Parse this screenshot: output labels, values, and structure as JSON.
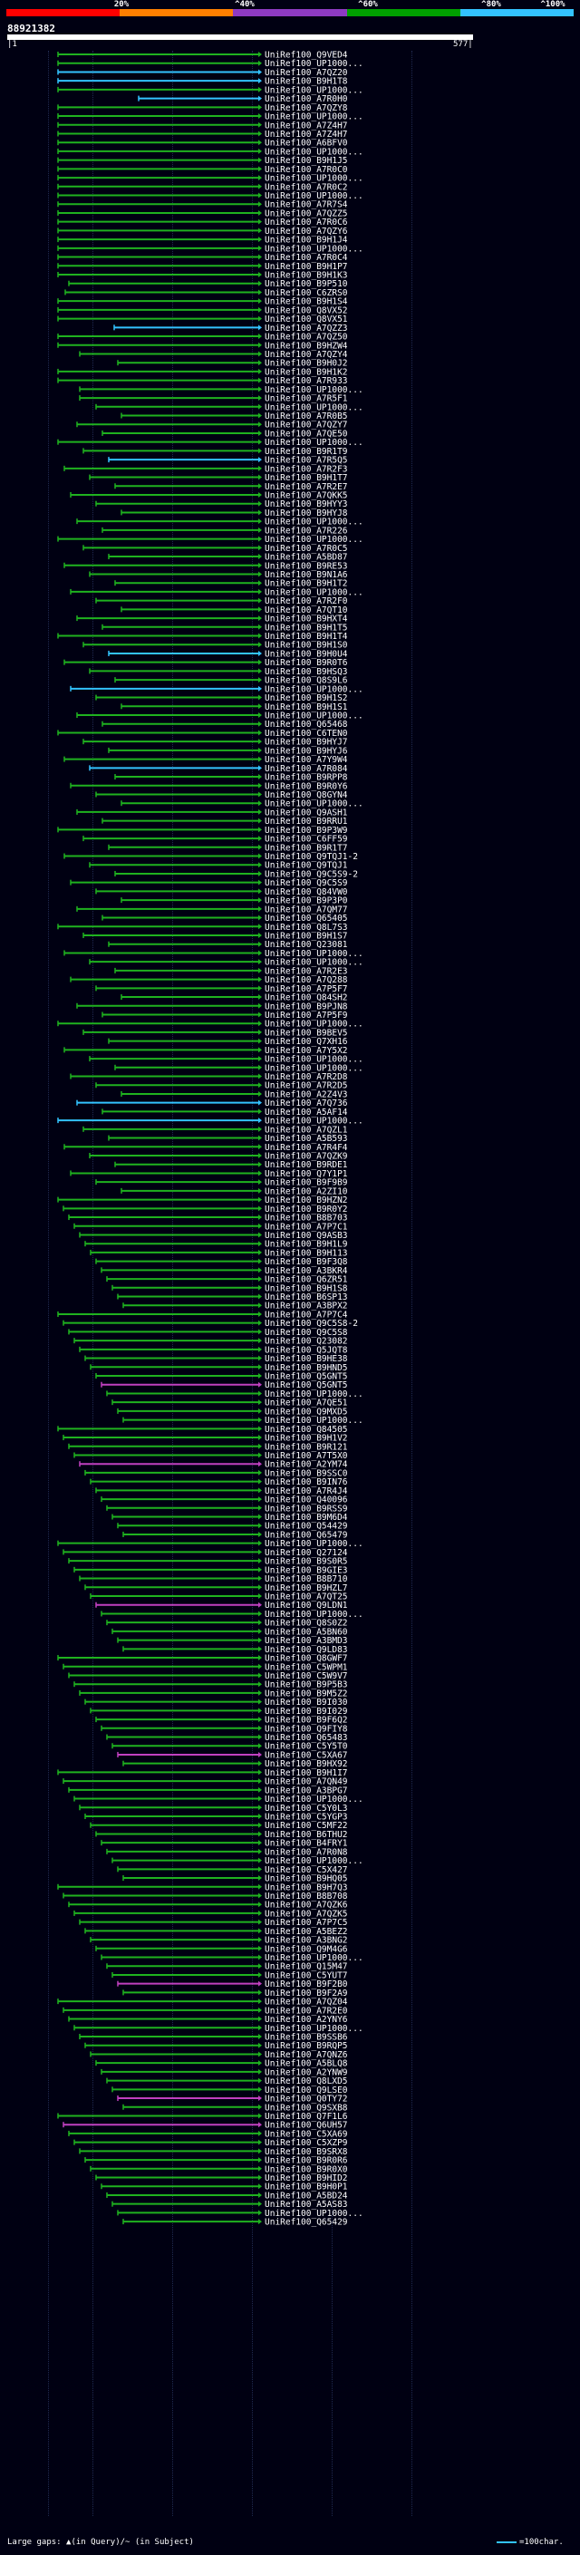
{
  "legend": {
    "labels": [
      "20%",
      "^40%",
      "^60%",
      "^80%",
      "^100%"
    ],
    "colors": [
      "#ff0000",
      "#ff7f00",
      "#8e3ac1",
      "#00a000",
      "#33c3ff"
    ]
  },
  "title": "88921382",
  "scale": {
    "start": "|1",
    "end": "577|"
  },
  "footer": {
    "text": "Large gaps: ▲(in Query)/~ (in Subject)",
    "scale_label": "=100char."
  },
  "hit_labels": [
    "UniRef100_Q9VED4",
    "UniRef100_UP1000...",
    "UniRef100_A7QZ20",
    "UniRef100_B9H1T8",
    "UniRef100_UP1000...",
    "UniRef100_A7R0H0",
    "UniRef100_A7QZY8",
    "UniRef100_UP1000...",
    "UniRef100_A7Z4H7",
    "UniRef100_A7Z4H7",
    "UniRef100_A6BFV0",
    "UniRef100_UP1000...",
    "UniRef100_B9H1J5",
    "UniRef100_A7R0C0",
    "UniRef100_UP1000...",
    "UniRef100_A7R0C2",
    "UniRef100_UP1000...",
    "UniRef100_A7R7S4",
    "UniRef100_A7QZZ5",
    "UniRef100_A7R0C6",
    "UniRef100_A7QZY6",
    "UniRef100_B9H1J4",
    "UniRef100_UP1000...",
    "UniRef100_A7R0C4",
    "UniRef100_B9H1P7",
    "UniRef100_B9H1K3",
    "UniRef100_B9P510",
    "UniRef100_C6ZRS0",
    "UniRef100_B9H1S4",
    "UniRef100_Q8VX52",
    "UniRef100_Q8VX51",
    "UniRef100_A7QZZ3",
    "UniRef100_A7QZ50",
    "UniRef100_B9HZW4",
    "UniRef100_A7QZY4",
    "UniRef100_B9H0J2",
    "UniRef100_B9H1K2",
    "UniRef100_A7R933",
    "UniRef100_UP1000...",
    "UniRef100_A7R5F1",
    "UniRef100_UP1000...",
    "UniRef100_A7R0B5",
    "UniRef100_A7QZY7",
    "UniRef100_A7QE50",
    "UniRef100_UP1000...",
    "UniRef100_B9R1T9",
    "UniRef100_A7R5Q5",
    "UniRef100_A7R2F3",
    "UniRef100_B9H1T7",
    "UniRef100_A7R2E7",
    "UniRef100_A7QKK5",
    "UniRef100_B9HYY3",
    "UniRef100_B9HYJ8",
    "UniRef100_UP1000...",
    "UniRef100_A7R226",
    "UniRef100_UP1000...",
    "UniRef100_A7R0C5",
    "UniRef100_A5BD87",
    "UniRef100_B9RE53",
    "UniRef100_B9N1A6",
    "UniRef100_B9H1T2",
    "UniRef100_UP1000...",
    "UniRef100_A7R2F0",
    "UniRef100_A7QT10",
    "UniRef100_B9HXT4",
    "UniRef100_B9H1T5",
    "UniRef100_B9H1T4",
    "UniRef100_B9H1S0",
    "UniRef100_B9H0U4",
    "UniRef100_B9R0T6",
    "UniRef100_B9HSQ3",
    "UniRef100_Q8S9L6",
    "UniRef100_UP1000...",
    "UniRef100_B9H1S2",
    "UniRef100_B9H1S1",
    "UniRef100_UP1000...",
    "UniRef100_Q65468",
    "UniRef100_C6TEN0",
    "UniRef100_B9HYJ7",
    "UniRef100_B9HYJ6",
    "UniRef100_A7Y9W4",
    "UniRef100_A7R084",
    "UniRef100_B9RPP8",
    "UniRef100_B9R0Y6",
    "UniRef100_Q8GYN4",
    "UniRef100_UP1000...",
    "UniRef100_Q9ASH1",
    "UniRef100_B9RRU1",
    "UniRef100_B9P3W9",
    "UniRef100_C6FF59",
    "UniRef100_B9R1T7",
    "UniRef100_Q9TQJ1-2",
    "UniRef100_Q9TQJ1",
    "UniRef100_Q9C5S9-2",
    "UniRef100_Q9C5S9",
    "UniRef100_Q84VW0",
    "UniRef100_B9P3P0",
    "UniRef100_A7QM77",
    "UniRef100_Q65405",
    "UniRef100_Q8L7S3",
    "UniRef100_B9H1S7",
    "UniRef100_Q23081",
    "UniRef100_UP1000...",
    "UniRef100_UP1000...",
    "UniRef100_A7R2E3",
    "UniRef100_A7Q288",
    "UniRef100_A7P5F7",
    "UniRef100_Q84SH2",
    "UniRef100_B9PJN8",
    "UniRef100_A7P5F9",
    "UniRef100_UP1000...",
    "UniRef100_B9BEV5",
    "UniRef100_Q7XH16",
    "UniRef100_A7Y5X2",
    "UniRef100_UP1000...",
    "UniRef100_UP1000...",
    "UniRef100_A7R2D8",
    "UniRef100_A7R2D5",
    "UniRef100_A2Z4V3",
    "UniRef100_A7Q736",
    "UniRef100_A5AF14",
    "UniRef100_UP1000...",
    "UniRef100_A7QZL1",
    "UniRef100_A5B593",
    "UniRef100_A7R4F4",
    "UniRef100_A7QZK9",
    "UniRef100_B9RDE1",
    "UniRef100_Q7Y1P1",
    "UniRef100_B9F9B9",
    "UniRef100_A2ZI10",
    "UniRef100_B9HZN2",
    "UniRef100_B9R0Y2",
    "UniRef100_B8B703",
    "UniRef100_A7P7C1",
    "UniRef100_Q9ASB3",
    "UniRef100_B9H1L9",
    "UniRef100_B9H113",
    "UniRef100_B9F3Q8",
    "UniRef100_A3BKR4",
    "UniRef100_Q6ZR51",
    "UniRef100_B9H1S8",
    "UniRef100_B6SP13",
    "UniRef100_A3BPX2",
    "UniRef100_A7P7C4",
    "UniRef100_Q9C5S8-2",
    "UniRef100_Q9C5S8",
    "UniRef100_Q23082",
    "UniRef100_Q5JQT8",
    "UniRef100_B9HE38",
    "UniRef100_B9HND5",
    "UniRef100_Q5GNT5",
    "UniRef100_Q5GNT5",
    "UniRef100_UP1000...",
    "UniRef100_A7QE51",
    "UniRef100_Q9MXD5",
    "UniRef100_UP1000...",
    "UniRef100_Q84505",
    "UniRef100_B9H1V2",
    "UniRef100_B9R121",
    "UniRef100_A7T5X0",
    "UniRef100_A2YM74",
    "UniRef100_B9SSC0",
    "UniRef100_B9IN76",
    "UniRef100_A7R4J4",
    "UniRef100_Q40096",
    "UniRef100_B9RSS9",
    "UniRef100_B9M6D4",
    "UniRef100_Q54429",
    "UniRef100_Q65479",
    "UniRef100_UP1000...",
    "UniRef100_Q27124",
    "UniRef100_B9S0R5",
    "UniRef100_B9GIE3",
    "UniRef100_B8B710",
    "UniRef100_B9HZL7",
    "UniRef100_A7QT25",
    "UniRef100_Q9LDN1",
    "UniRef100_UP1000...",
    "UniRef100_Q8S0Z2",
    "UniRef100_A5BN60",
    "UniRef100_A3BMD3",
    "UniRef100_Q9LD83",
    "UniRef100_Q8GWF7",
    "UniRef100_C5WPM1",
    "UniRef100_C5W9V7",
    "UniRef100_B9P5B3",
    "UniRef100_B9M5Z2",
    "UniRef100_B9I030",
    "UniRef100_B9I029",
    "UniRef100_B9F6Q2",
    "UniRef100_Q9FIY8",
    "UniRef100_Q65483",
    "UniRef100_C5Y5T0",
    "UniRef100_C5XA67",
    "UniRef100_B9HX92",
    "UniRef100_B9H1I7",
    "UniRef100_A7QN49",
    "UniRef100_A3BPG7",
    "UniRef100_UP1000...",
    "UniRef100_C5Y0L3",
    "UniRef100_C5YGP3",
    "UniRef100_C5MF22",
    "UniRef100_B6THU2",
    "UniRef100_B4FRY1",
    "UniRef100_A7R0N8",
    "UniRef100_UP1000...",
    "UniRef100_C5X427",
    "UniRef100_B9HQ05",
    "UniRef100_B9H7Q3",
    "UniRef100_B8B708",
    "UniRef100_A7QZK6",
    "UniRef100_A7QZK5",
    "UniRef100_A7P7C5",
    "UniRef100_A5BEZ2",
    "UniRef100_A3BNG2",
    "UniRef100_Q9M4G6",
    "UniRef100_UP1000...",
    "UniRef100_Q15M47",
    "UniRef100_C5YUT7",
    "UniRef100_B9F2B0",
    "UniRef100_B9F2A9",
    "UniRef100_A7QZ04",
    "UniRef100_A7R2E0",
    "UniRef100_A2YNY6",
    "UniRef100_UP1000...",
    "UniRef100_B9SSB6",
    "UniRef100_B9RQP5",
    "UniRef100_A7QNZ6",
    "UniRef100_A5BLQ8",
    "UniRef100_A2YNW9",
    "UniRef100_Q8LXD5",
    "UniRef100_Q9LSE0",
    "UniRef100_Q0TY72",
    "UniRef100_Q9SXB8",
    "UniRef100_Q7F1L6",
    "UniRef100_Q6UH57",
    "UniRef100_C5XA69",
    "UniRef100_C5XZP9",
    "UniRef100_B9SRX8",
    "UniRef100_B9R0R6",
    "UniRef100_B9R0X0",
    "UniRef100_B9HID2",
    "UniRef100_B9H0P1",
    "UniRef100_A5BD24",
    "UniRef100_A5AS83",
    "UniRef100_UP1000...",
    "UniRef100_Q65429"
  ]
}
